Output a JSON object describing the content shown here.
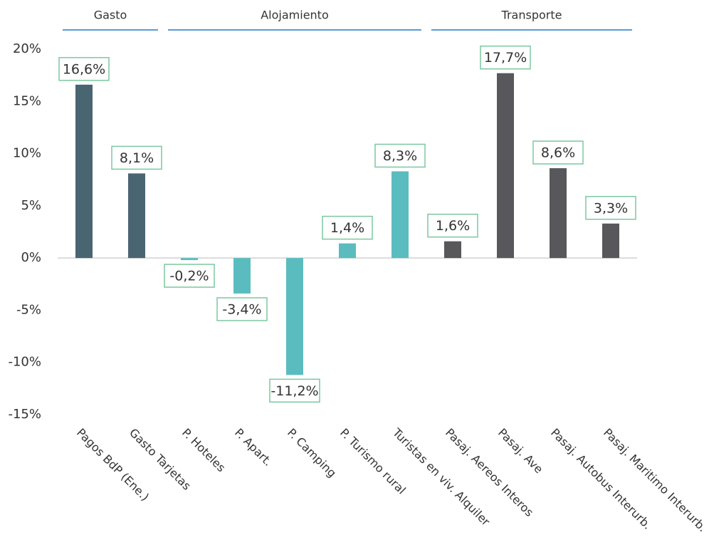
{
  "chart_data": {
    "type": "bar",
    "categories": [
      "Pagos BdP (Ene.)",
      "Gasto Tarjetas",
      "P. Hoteles",
      "P. Apart.",
      "P. Camping",
      "P. Turismo rural",
      "Turistas en viv. Alquiler",
      "Pasaj. Aereos Interos",
      "Pasaj. Ave",
      "Pasaj. Autobus Interurb.",
      "Pasaj. Maritimo Interurb."
    ],
    "series": [
      {
        "name": "Gasto",
        "color": "#4a6572",
        "values": [
          16.6,
          8.1,
          null,
          null,
          null,
          null,
          null,
          null,
          null,
          null,
          null
        ],
        "value_labels": [
          "16,6%",
          "8,1%",
          null,
          null,
          null,
          null,
          null,
          null,
          null,
          null,
          null
        ]
      },
      {
        "name": "Alojamiento",
        "color": "#5bbcbf",
        "values": [
          null,
          null,
          -0.2,
          -3.4,
          -11.2,
          1.4,
          8.3,
          null,
          null,
          null,
          null
        ],
        "value_labels": [
          null,
          null,
          "-0,2%",
          "-3,4%",
          "-11,2%",
          "1,4%",
          "8,3%",
          null,
          null,
          null,
          null
        ]
      },
      {
        "name": "Transporte",
        "color": "#58575c",
        "values": [
          null,
          null,
          null,
          null,
          null,
          null,
          null,
          1.6,
          17.7,
          8.6,
          3.3
        ],
        "value_labels": [
          null,
          null,
          null,
          null,
          null,
          null,
          null,
          "1,6%",
          "17,7%",
          "8,6%",
          "3,3%"
        ]
      }
    ],
    "ylim": [
      -15,
      20
    ],
    "yticks": [
      {
        "value": -15,
        "label": "-15%"
      },
      {
        "value": -10,
        "label": "-10%"
      },
      {
        "value": -5,
        "label": "-5%"
      },
      {
        "value": 0,
        "label": "0%"
      },
      {
        "value": 5,
        "label": "5%"
      },
      {
        "value": 10,
        "label": "10%"
      },
      {
        "value": 15,
        "label": "15%"
      },
      {
        "value": 20,
        "label": "20%"
      }
    ],
    "grid": false
  }
}
